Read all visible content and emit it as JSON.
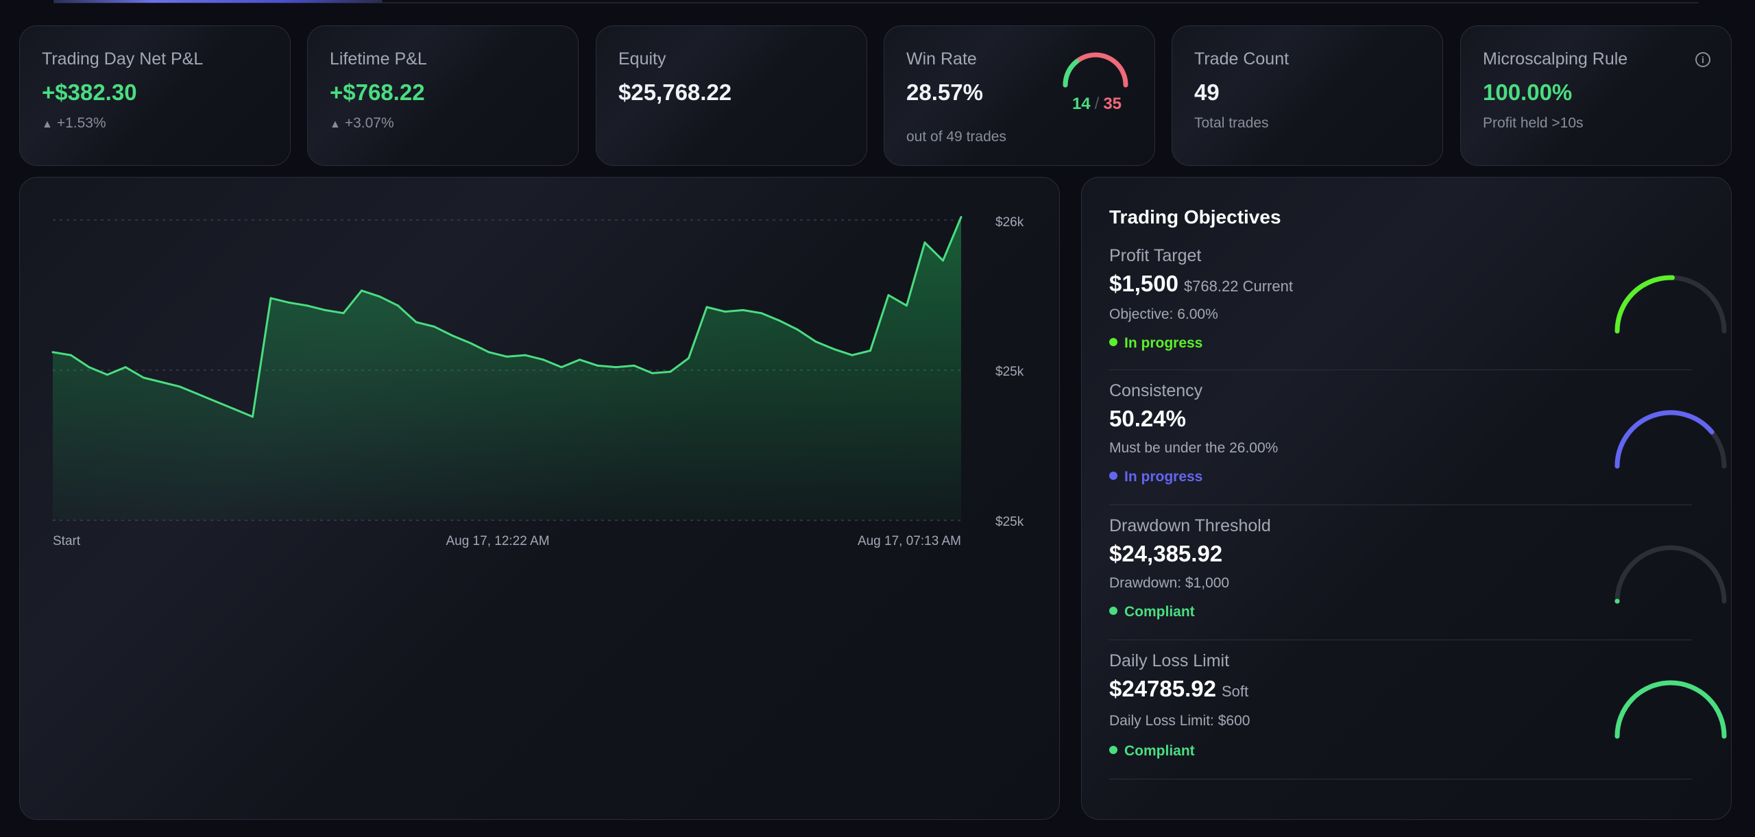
{
  "topbar": {
    "progress_fraction": 0.2
  },
  "stats": {
    "day_pnl": {
      "label": "Trading Day Net P&L",
      "value": "+$382.30",
      "sub": "+1.53%"
    },
    "lifetime_pnl": {
      "label": "Lifetime P&L",
      "value": "+$768.22",
      "sub": "+3.07%"
    },
    "equity": {
      "label": "Equity",
      "value": "$25,768.22"
    },
    "win_rate": {
      "label": "Win Rate",
      "value": "28.57%",
      "wins": "14",
      "sep": "/",
      "losses": "35",
      "sub": "out of 49 trades"
    },
    "trade_count": {
      "label": "Trade Count",
      "value": "49",
      "sub": "Total trades"
    },
    "microscalping": {
      "label": "Microscalping Rule",
      "value": "100.00%",
      "sub": "Profit held >10s",
      "info_icon": "info-icon"
    }
  },
  "colors": {
    "green": "#4ade80",
    "red": "#f06a7a",
    "lime": "#5cf02a",
    "indigo": "#6366f1",
    "gauge_track": "#2c2f38"
  },
  "chart_data": {
    "type": "area",
    "x_tick_labels": [
      "Start",
      "Aug 17, 12:22 AM",
      "Aug 17, 07:13 AM"
    ],
    "y_tick_labels": [
      "$26k",
      "$25k",
      "$25k"
    ],
    "ylim": [
      25000,
      26000
    ],
    "grid": true,
    "values": [
      25560,
      25550,
      25510,
      25485,
      25510,
      25475,
      25460,
      25445,
      25420,
      25395,
      25370,
      25345,
      25740,
      25725,
      25715,
      25700,
      25690,
      25765,
      25745,
      25715,
      25660,
      25645,
      25615,
      25590,
      25560,
      25545,
      25550,
      25535,
      25510,
      25535,
      25515,
      25510,
      25515,
      25490,
      25495,
      25540,
      25710,
      25695,
      25700,
      25690,
      25665,
      25635,
      25595,
      25570,
      25550,
      25565,
      25750,
      25715,
      25925,
      25865,
      26010
    ]
  },
  "objectives": {
    "title": "Trading Objectives",
    "items": [
      {
        "label": "Profit Target",
        "value": "$1,500",
        "aside": "$768.22 Current",
        "desc": "Objective: 6.00%",
        "status": "In progress",
        "status_color": "#5cf02a",
        "gauge_color": "#5cf02a",
        "gauge_fraction": 0.51
      },
      {
        "label": "Consistency",
        "value": "50.24%",
        "aside": "",
        "desc": "Must be under the 26.00%",
        "status": "In progress",
        "status_color": "#6366f1",
        "gauge_color": "#6366f1",
        "gauge_fraction": 0.78
      },
      {
        "label": "Drawdown Threshold",
        "value": "$24,385.92",
        "aside": "",
        "desc": "Drawdown: $1,000",
        "status": "Compliant",
        "status_color": "#4ade80",
        "gauge_color": "#4ade80",
        "gauge_fraction": 0.0
      },
      {
        "label": "Daily Loss Limit",
        "value": "$24785.92",
        "aside": "Soft",
        "desc": "Daily Loss Limit: $600",
        "status": "Compliant",
        "status_color": "#4ade80",
        "gauge_color": "#4ade80",
        "gauge_fraction": 1.0
      }
    ]
  }
}
